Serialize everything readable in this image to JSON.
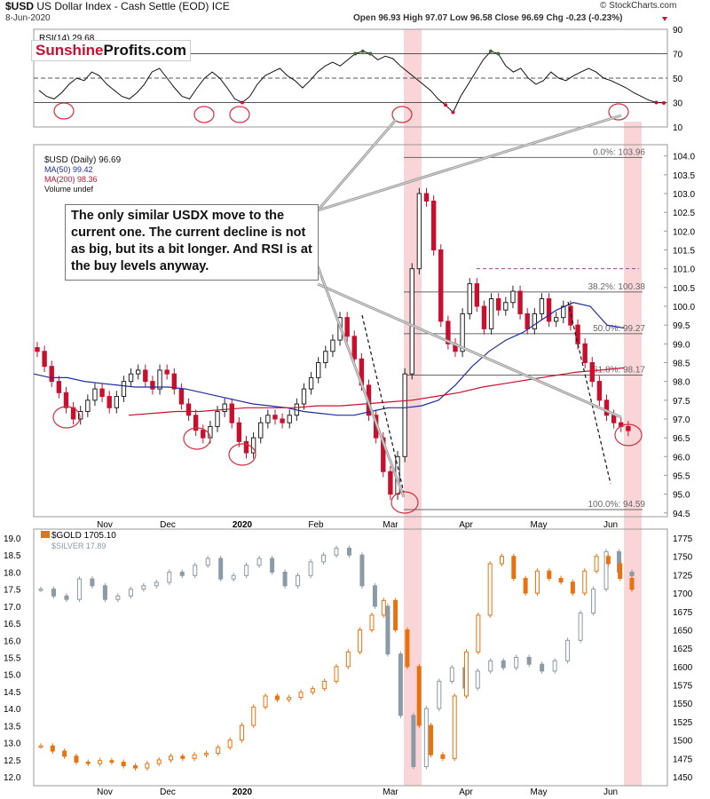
{
  "header": {
    "symbol": "$USD",
    "name": "US Dollar Index - Cash Settle (EOD)",
    "exchange": "ICE",
    "date": "8-Jun-2020",
    "ohlc": "Open 96.93  High 97.07  Low 96.58  Close 96.69  Chg -0.23 (-0.23%)",
    "credit": "© StockCharts.com"
  },
  "watermark": {
    "part1": "Sunshine",
    "part2": "Profits.com"
  },
  "annotation": "The only similar USDX move to the current one. The current decline is not as big, but its a bit longer. And RSI is at the buy levels anyway.",
  "colors": {
    "up": "#222222",
    "down": "#c8102e",
    "ma50": "#1f2f9a",
    "ma200": "#c8102e",
    "gold": "#e8730e",
    "silver": "#8a9aa6",
    "highlight": "#f4b3b8"
  },
  "chart_data": [
    {
      "type": "line",
      "panel": "RSI",
      "legend": "RSI(14) 29.68",
      "y_ticks": [
        "90",
        "70",
        "50",
        "30",
        "10"
      ],
      "ylim": [
        10,
        90
      ],
      "reference_lines": [
        70,
        50,
        30
      ],
      "series": [
        {
          "name": "RSI(14)",
          "values": [
            40,
            35,
            33,
            38,
            45,
            50,
            48,
            55,
            52,
            45,
            40,
            35,
            33,
            38,
            45,
            55,
            58,
            50,
            42,
            35,
            33,
            42,
            50,
            55,
            50,
            42,
            33,
            30,
            35,
            45,
            52,
            55,
            58,
            52,
            48,
            42,
            48,
            55,
            60,
            63,
            60,
            65,
            70,
            72,
            70,
            65,
            68,
            66,
            60,
            55,
            50,
            45,
            40,
            33,
            28,
            22,
            35,
            45,
            55,
            65,
            72,
            70,
            60,
            55,
            58,
            50,
            45,
            48,
            55,
            50,
            48,
            52,
            55,
            58,
            55,
            50,
            48,
            45,
            42,
            38,
            35,
            32,
            30,
            29.68
          ]
        }
      ]
    },
    {
      "type": "candlestick",
      "panel": "USD",
      "legend": [
        "$USD (Daily) 96.69",
        "MA(50) 99.42",
        "MA(200) 98.36",
        "Volume undef"
      ],
      "y_ticks": [
        "104.0",
        "103.5",
        "103.0",
        "102.5",
        "102.0",
        "101.5",
        "101.0",
        "100.5",
        "100.0",
        "99.5",
        "99.0",
        "98.5",
        "98.0",
        "97.5",
        "97.0",
        "96.5",
        "96.0",
        "95.5",
        "95.0",
        "94.5"
      ],
      "ylim": [
        94.4,
        104.3
      ],
      "x_ticks": [
        "Nov",
        "Dec",
        "2020",
        "Feb",
        "Mar",
        "Apr",
        "May",
        "Jun"
      ],
      "close": [
        98.8,
        98.4,
        98.0,
        97.7,
        97.3,
        97.0,
        97.2,
        97.5,
        97.8,
        97.6,
        97.3,
        97.6,
        98.0,
        98.2,
        98.3,
        98.0,
        97.8,
        98.3,
        98.2,
        97.8,
        97.4,
        97.1,
        96.7,
        96.5,
        96.8,
        97.2,
        97.4,
        96.9,
        96.4,
        96.1,
        96.5,
        96.9,
        97.1,
        97.0,
        96.9,
        97.1,
        97.4,
        97.8,
        98.1,
        98.5,
        98.8,
        99.1,
        99.7,
        99.2,
        98.6,
        97.9,
        97.1,
        96.5,
        95.6,
        95.0,
        96.0,
        98.2,
        101.0,
        103.0,
        102.8,
        101.5,
        99.6,
        99.0,
        98.8,
        99.8,
        100.6,
        100.0,
        99.4,
        100.2,
        99.9,
        100.1,
        100.4,
        99.8,
        99.4,
        99.8,
        100.2,
        99.6,
        99.7,
        100.0,
        99.5,
        99.0,
        98.5,
        98.0,
        97.5,
        97.1,
        96.9,
        96.8,
        96.69
      ],
      "ma50": [
        98.2,
        98.1,
        98.1,
        98.0,
        97.95,
        97.9,
        97.85,
        97.85,
        97.85,
        97.8,
        97.7,
        97.6,
        97.5,
        97.4,
        97.35,
        97.3,
        97.2,
        97.15,
        97.1,
        97.1,
        97.2,
        97.3,
        97.3,
        97.35,
        97.5,
        97.9,
        98.4,
        98.8,
        99.1,
        99.3,
        99.6,
        99.9,
        100.1,
        100.0,
        99.5,
        99.42
      ],
      "ma200": [
        97.1,
        97.15,
        97.2,
        97.2,
        97.25,
        97.3,
        97.3,
        97.3,
        97.35,
        97.35,
        97.4,
        97.45,
        97.5,
        97.6,
        97.7,
        97.85,
        97.95,
        98.05,
        98.15,
        98.25,
        98.3,
        98.36
      ],
      "fibonacci": [
        {
          "label": "0.0%: 103.96",
          "value": 103.96
        },
        {
          "label": "38.2%: 100.38",
          "value": 100.38
        },
        {
          "label": "50.0%: 99.27",
          "value": 99.27
        },
        {
          "label": "61.8%: 98.17",
          "value": 98.17
        },
        {
          "label": "100.0%: 94.59",
          "value": 94.59
        }
      ]
    },
    {
      "type": "candlestick",
      "panel": "Gold and Silver",
      "legend": [
        "$GOLD 1705.10",
        "$SILVER 17.89"
      ],
      "left_ticks": [
        "19.0",
        "18.5",
        "18.0",
        "17.5",
        "17.0",
        "16.5",
        "16.0",
        "15.5",
        "15.0",
        "14.5",
        "14.0",
        "13.5",
        "13.0",
        "12.5",
        "12.0"
      ],
      "right_ticks": [
        "1775",
        "1750",
        "1725",
        "1700",
        "1675",
        "1650",
        "1625",
        "1600",
        "1575",
        "1550",
        "1525",
        "1500",
        "1475",
        "1450"
      ],
      "x_ticks": [
        "Nov",
        "Dec",
        "2020",
        "Mar",
        "Apr",
        "May",
        "Jun"
      ],
      "gold": [
        1492,
        1485,
        1478,
        1470,
        1468,
        1472,
        1470,
        1465,
        1462,
        1468,
        1473,
        1478,
        1475,
        1480,
        1482,
        1490,
        1500,
        1520,
        1545,
        1560,
        1555,
        1558,
        1565,
        1570,
        1580,
        1600,
        1620,
        1650,
        1670,
        1690,
        1650,
        1600,
        1520,
        1480,
        1475,
        1560,
        1620,
        1670,
        1740,
        1750,
        1720,
        1700,
        1730,
        1720,
        1715,
        1700,
        1730,
        1750,
        1740,
        1720,
        1705.1
      ],
      "silver": [
        17.5,
        17.3,
        17.2,
        17.8,
        17.6,
        17.2,
        17.3,
        17.5,
        17.6,
        17.7,
        18.0,
        17.9,
        18.2,
        18.4,
        17.8,
        17.9,
        18.2,
        18.4,
        18.0,
        17.6,
        17.9,
        18.3,
        18.5,
        18.7,
        18.5,
        17.6,
        17.0,
        15.6,
        13.8,
        12.3,
        14.0,
        14.8,
        15.2,
        14.6,
        15.1,
        15.4,
        15.2,
        15.5,
        15.3,
        15.1,
        15.4,
        16.0,
        16.8,
        17.5,
        18.6,
        18.0,
        17.89
      ]
    }
  ]
}
